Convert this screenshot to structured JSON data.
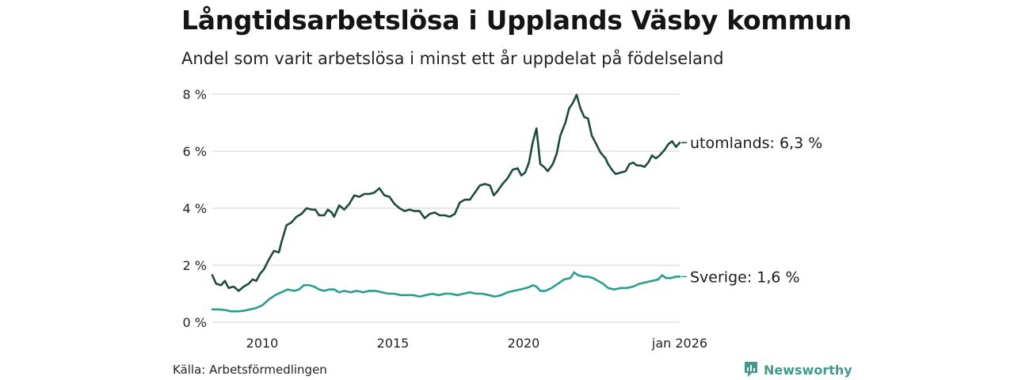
{
  "title": "Långtidsarbetslösa i Upplands Väsby kommun",
  "subtitle": "Andel som varit arbetslösa i minst ett år uppdelat på födelseland",
  "source": "Källa: Arbetsförmedlingen",
  "brand": "Newsworthy",
  "colors": {
    "utomlands": "#1f4a40",
    "sverige": "#2a9d8f",
    "grid": "#d9d9d9",
    "brand": "#3f9a8c"
  },
  "chart_data": {
    "type": "line",
    "x_ticks": [
      {
        "x": 2010.0,
        "label": "2010"
      },
      {
        "x": 2015.0,
        "label": "2015"
      },
      {
        "x": 2020.0,
        "label": "2020"
      },
      {
        "x": 2026.0,
        "label": "jan 2026"
      }
    ],
    "y_ticks": [
      {
        "y": 0,
        "label": "0 %"
      },
      {
        "y": 2,
        "label": "2 %"
      },
      {
        "y": 4,
        "label": "4 %"
      },
      {
        "y": 6,
        "label": "6 %"
      },
      {
        "y": 8,
        "label": "8 %"
      }
    ],
    "xlim": [
      2008.25,
      2026.0
    ],
    "ylim": [
      0,
      8
    ],
    "unit": "%",
    "series": [
      {
        "name": "utomlands",
        "end_label": "utomlands: 6,3 %",
        "color": "#1f4a40",
        "points": [
          [
            2008.25,
            1.65
          ],
          [
            2008.4,
            1.35
          ],
          [
            2008.6,
            1.3
          ],
          [
            2008.75,
            1.45
          ],
          [
            2008.9,
            1.2
          ],
          [
            2009.1,
            1.25
          ],
          [
            2009.3,
            1.1
          ],
          [
            2009.5,
            1.25
          ],
          [
            2009.7,
            1.35
          ],
          [
            2009.85,
            1.5
          ],
          [
            2010.0,
            1.45
          ],
          [
            2010.15,
            1.7
          ],
          [
            2010.3,
            1.85
          ],
          [
            2010.5,
            2.2
          ],
          [
            2010.7,
            2.5
          ],
          [
            2010.9,
            2.45
          ],
          [
            2011.0,
            2.8
          ],
          [
            2011.2,
            3.4
          ],
          [
            2011.4,
            3.5
          ],
          [
            2011.6,
            3.7
          ],
          [
            2011.8,
            3.8
          ],
          [
            2012.0,
            4.0
          ],
          [
            2012.2,
            3.95
          ],
          [
            2012.35,
            3.95
          ],
          [
            2012.5,
            3.75
          ],
          [
            2012.7,
            3.75
          ],
          [
            2012.85,
            3.95
          ],
          [
            2013.0,
            3.85
          ],
          [
            2013.1,
            3.7
          ],
          [
            2013.3,
            4.1
          ],
          [
            2013.5,
            3.95
          ],
          [
            2013.7,
            4.15
          ],
          [
            2013.9,
            4.45
          ],
          [
            2014.1,
            4.4
          ],
          [
            2014.3,
            4.5
          ],
          [
            2014.5,
            4.5
          ],
          [
            2014.7,
            4.55
          ],
          [
            2014.9,
            4.7
          ],
          [
            2015.1,
            4.45
          ],
          [
            2015.3,
            4.4
          ],
          [
            2015.5,
            4.15
          ],
          [
            2015.7,
            4.0
          ],
          [
            2015.9,
            3.9
          ],
          [
            2016.1,
            3.95
          ],
          [
            2016.3,
            3.9
          ],
          [
            2016.5,
            3.9
          ],
          [
            2016.7,
            3.65
          ],
          [
            2016.9,
            3.8
          ],
          [
            2017.1,
            3.85
          ],
          [
            2017.3,
            3.75
          ],
          [
            2017.5,
            3.75
          ],
          [
            2017.7,
            3.7
          ],
          [
            2017.9,
            3.8
          ],
          [
            2018.1,
            4.2
          ],
          [
            2018.3,
            4.3
          ],
          [
            2018.5,
            4.3
          ],
          [
            2018.7,
            4.55
          ],
          [
            2018.9,
            4.8
          ],
          [
            2019.1,
            4.85
          ],
          [
            2019.3,
            4.8
          ],
          [
            2019.45,
            4.45
          ],
          [
            2019.6,
            4.6
          ],
          [
            2019.8,
            4.85
          ],
          [
            2020.0,
            5.05
          ],
          [
            2020.2,
            5.35
          ],
          [
            2020.4,
            5.4
          ],
          [
            2020.55,
            5.15
          ],
          [
            2020.7,
            5.25
          ],
          [
            2020.85,
            5.6
          ],
          [
            2021.0,
            6.3
          ],
          [
            2021.15,
            6.8
          ],
          [
            2021.3,
            5.55
          ],
          [
            2021.45,
            5.45
          ],
          [
            2021.6,
            5.3
          ],
          [
            2021.8,
            5.55
          ],
          [
            2021.95,
            5.9
          ],
          [
            2022.1,
            6.55
          ],
          [
            2022.3,
            7.0
          ],
          [
            2022.45,
            7.5
          ],
          [
            2022.6,
            7.7
          ],
          [
            2022.75,
            7.98
          ],
          [
            2022.9,
            7.5
          ],
          [
            2023.05,
            7.2
          ],
          [
            2023.2,
            7.15
          ],
          [
            2023.35,
            6.55
          ],
          [
            2023.5,
            6.3
          ],
          [
            2023.7,
            5.95
          ],
          [
            2023.9,
            5.75
          ],
          [
            2024.0,
            5.55
          ],
          [
            2024.15,
            5.35
          ],
          [
            2024.3,
            5.2
          ],
          [
            2024.5,
            5.25
          ],
          [
            2024.7,
            5.3
          ],
          [
            2024.85,
            5.55
          ],
          [
            2025.0,
            5.6
          ],
          [
            2025.15,
            5.5
          ],
          [
            2025.3,
            5.5
          ],
          [
            2025.45,
            5.45
          ],
          [
            2025.6,
            5.6
          ],
          [
            2025.75,
            5.85
          ],
          [
            2025.9,
            5.75
          ],
          [
            2026.05,
            5.85
          ],
          [
            2026.25,
            6.05
          ],
          [
            2026.4,
            6.25
          ],
          [
            2026.55,
            6.35
          ],
          [
            2026.7,
            6.15
          ],
          [
            2026.85,
            6.3
          ]
        ]
      },
      {
        "name": "sverige",
        "end_label": "Sverige: 1,6 %",
        "color": "#2a9d8f",
        "points": [
          [
            2008.25,
            0.45
          ],
          [
            2008.5,
            0.45
          ],
          [
            2008.75,
            0.43
          ],
          [
            2009.0,
            0.38
          ],
          [
            2009.25,
            0.38
          ],
          [
            2009.5,
            0.4
          ],
          [
            2009.75,
            0.45
          ],
          [
            2010.0,
            0.5
          ],
          [
            2010.25,
            0.6
          ],
          [
            2010.5,
            0.8
          ],
          [
            2010.75,
            0.95
          ],
          [
            2011.0,
            1.05
          ],
          [
            2011.25,
            1.15
          ],
          [
            2011.5,
            1.1
          ],
          [
            2011.7,
            1.15
          ],
          [
            2011.9,
            1.3
          ],
          [
            2012.1,
            1.3
          ],
          [
            2012.3,
            1.25
          ],
          [
            2012.5,
            1.15
          ],
          [
            2012.7,
            1.1
          ],
          [
            2012.9,
            1.15
          ],
          [
            2013.1,
            1.15
          ],
          [
            2013.3,
            1.05
          ],
          [
            2013.5,
            1.1
          ],
          [
            2013.75,
            1.05
          ],
          [
            2014.0,
            1.1
          ],
          [
            2014.25,
            1.05
          ],
          [
            2014.5,
            1.1
          ],
          [
            2014.75,
            1.1
          ],
          [
            2015.0,
            1.05
          ],
          [
            2015.25,
            1.0
          ],
          [
            2015.5,
            1.0
          ],
          [
            2015.75,
            0.95
          ],
          [
            2016.0,
            0.95
          ],
          [
            2016.25,
            0.95
          ],
          [
            2016.5,
            0.9
          ],
          [
            2016.75,
            0.95
          ],
          [
            2017.0,
            1.0
          ],
          [
            2017.25,
            0.95
          ],
          [
            2017.5,
            1.0
          ],
          [
            2017.75,
            1.0
          ],
          [
            2018.0,
            0.95
          ],
          [
            2018.25,
            1.0
          ],
          [
            2018.5,
            1.05
          ],
          [
            2018.75,
            1.0
          ],
          [
            2019.0,
            1.0
          ],
          [
            2019.25,
            0.95
          ],
          [
            2019.5,
            0.9
          ],
          [
            2019.75,
            0.95
          ],
          [
            2020.0,
            1.05
          ],
          [
            2020.25,
            1.1
          ],
          [
            2020.5,
            1.15
          ],
          [
            2020.75,
            1.2
          ],
          [
            2020.9,
            1.25
          ],
          [
            2021.0,
            1.3
          ],
          [
            2021.15,
            1.25
          ],
          [
            2021.3,
            1.1
          ],
          [
            2021.5,
            1.1
          ],
          [
            2021.75,
            1.2
          ],
          [
            2022.0,
            1.35
          ],
          [
            2022.25,
            1.5
          ],
          [
            2022.5,
            1.55
          ],
          [
            2022.65,
            1.75
          ],
          [
            2022.8,
            1.65
          ],
          [
            2023.0,
            1.6
          ],
          [
            2023.2,
            1.6
          ],
          [
            2023.4,
            1.55
          ],
          [
            2023.6,
            1.45
          ],
          [
            2023.8,
            1.35
          ],
          [
            2024.0,
            1.2
          ],
          [
            2024.25,
            1.15
          ],
          [
            2024.5,
            1.2
          ],
          [
            2024.75,
            1.2
          ],
          [
            2025.0,
            1.25
          ],
          [
            2025.25,
            1.35
          ],
          [
            2025.5,
            1.4
          ],
          [
            2025.75,
            1.45
          ],
          [
            2026.0,
            1.5
          ],
          [
            2026.15,
            1.65
          ],
          [
            2026.3,
            1.55
          ],
          [
            2026.5,
            1.55
          ],
          [
            2026.7,
            1.6
          ],
          [
            2026.85,
            1.6
          ]
        ]
      }
    ]
  }
}
